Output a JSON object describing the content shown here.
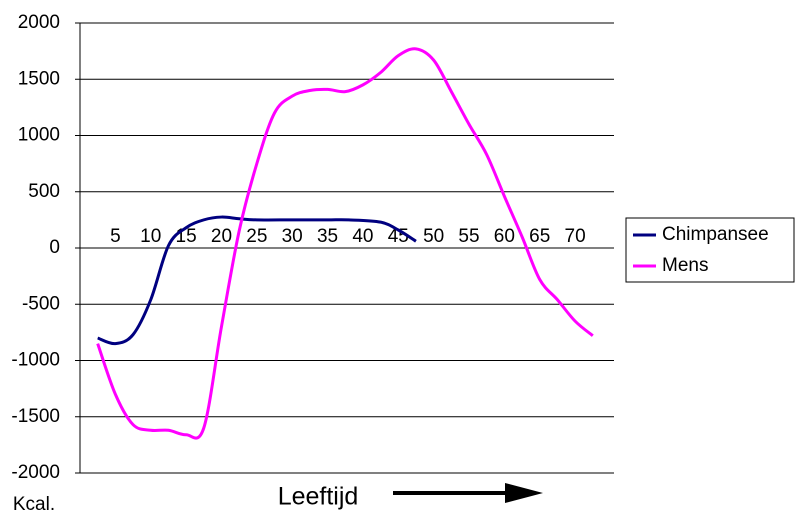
{
  "chart_data": {
    "type": "line",
    "x_label": "Leeftijd",
    "y_label": "Kcal.",
    "xlim": [
      0,
      75.5
    ],
    "xticks": [
      5,
      10,
      15,
      20,
      25,
      30,
      35,
      40,
      45,
      50,
      55,
      60,
      65,
      70
    ],
    "ylim": [
      -2000,
      2000
    ],
    "yticks": [
      -2000,
      -1500,
      -1000,
      -500,
      0,
      500,
      1000,
      1500,
      2000
    ],
    "grid": true,
    "legend": "right",
    "series": [
      {
        "name": "Chimpansee",
        "color": "#000080",
        "x": [
          2.5,
          5,
          7.5,
          10,
          12.5,
          15,
          17.5,
          20,
          22.5,
          25,
          30,
          35,
          38,
          42.5,
          45,
          47.5
        ],
        "values": [
          -800,
          -850,
          -770,
          -460,
          20,
          180,
          250,
          275,
          260,
          250,
          250,
          250,
          250,
          230,
          160,
          60
        ]
      },
      {
        "name": "Mens",
        "color": "#ff00ff",
        "x": [
          2.5,
          5,
          7.5,
          10,
          12.5,
          15,
          17.5,
          20,
          22.5,
          25,
          27.5,
          30,
          32.5,
          35,
          37.5,
          40,
          42.5,
          45,
          47.5,
          50,
          52.5,
          55,
          57.5,
          60,
          62.5,
          65,
          67.5,
          70,
          72.5
        ],
        "values": [
          -850,
          -1300,
          -1570,
          -1620,
          -1620,
          -1660,
          -1600,
          -700,
          150,
          750,
          1200,
          1350,
          1400,
          1410,
          1390,
          1450,
          1560,
          1710,
          1770,
          1670,
          1390,
          1100,
          830,
          460,
          100,
          -280,
          -460,
          -650,
          -780
        ]
      }
    ]
  }
}
